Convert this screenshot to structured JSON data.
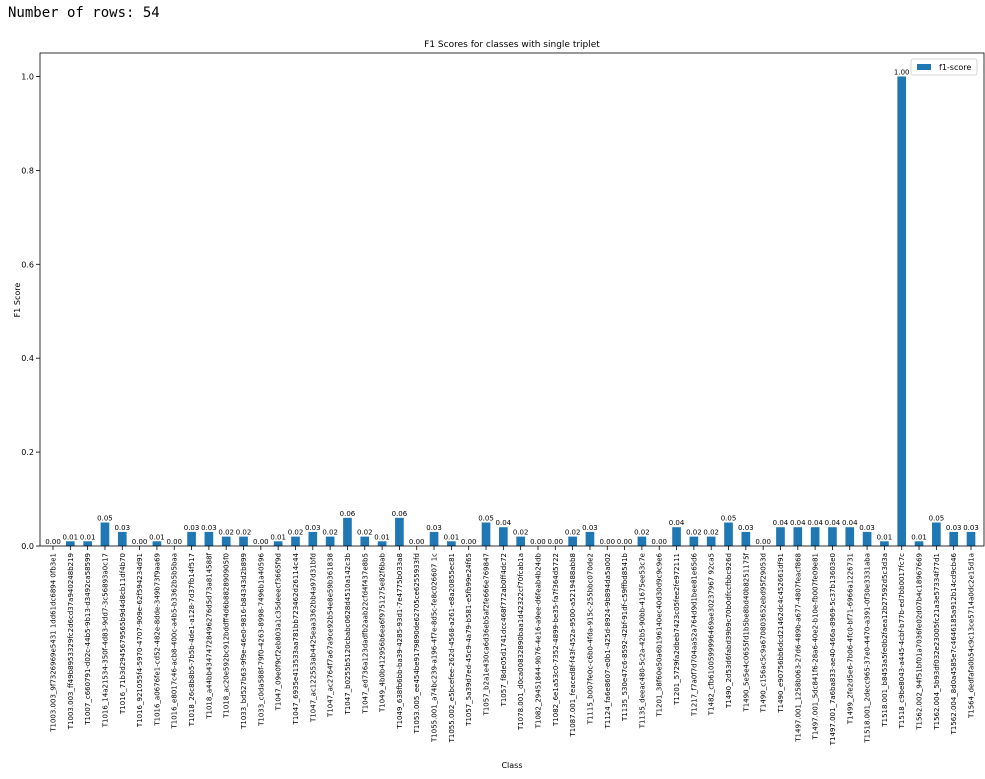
{
  "header": {
    "rows_text": "Number of rows: 54"
  },
  "chart_data": {
    "type": "bar",
    "title": "F1 Scores for classes with single triplet",
    "xlabel": "Class",
    "ylabel": "F1 Score",
    "ylim": [
      0,
      1.05
    ],
    "yticks": [
      "0.0",
      "0.2",
      "0.4",
      "0.6",
      "0.8",
      "1.0"
    ],
    "ytick_values": [
      0,
      0.2,
      0.4,
      0.6,
      0.8,
      1.0
    ],
    "legend": {
      "position": "top-right",
      "entries": [
        "f1-score"
      ]
    },
    "bar_color": "#1f77b4",
    "grid": false,
    "categories": [
      "T1003.003_9f7326969e5431 1dd61dc6894 0fb3e1",
      "T1003.003_ff49b8953329fc2d6cd37a940248b219",
      "T1007_c660791-d02c-44b5-9b13-d3492ca58599",
      "T1016_14a21534-350f-4d83-9dd7-3c56893a0c17",
      "T1016_71b3d2945679565b9d4d8cb11df4b70",
      "T1016_921055f4-5970-4707-909e-62f594234d91",
      "T1016_a0676fe1-cd52-482e-8dde-349b73f9aa69",
      "T1016_e8017c46-acb8-400c-a4b5-b3362b5b5baa",
      "T1018_26c8b8b5-7b5b-4de1-a128-7d37fb14f517",
      "T1018_a44bb43474728496276d5d73a814588f",
      "T1018_ac20e592bc912bddff4d6b882890905f0",
      "T1033_bd527b63-9f9e-46e0-9816-b84343d2b899",
      "T1033_c0da588f-79f0-4263-8998-7496b1a40596",
      "T1047_09e0f9cf2eb803a1c35deeecf3665f9d",
      "T1047_6935e413533aa781bb723462d26114c44",
      "T1047_ac122553ab4425eaa3362bb4a97d31bfd",
      "T1047_ac2764f7a67a9ce92b54e8e59b361838",
      "T1047_b0255b5120cbabc0628d4510a142c3b",
      "T1047_ed736a123dadfb2aab22cfd4f437e8b5",
      "T1049_4b0b412956b6ea6f9751275e82f6bab",
      "T1049_638fb6bb-ba39-4285-93d1-7e4775b033a8",
      "T1053.005_ee454be9179890de62705ce6255933fd",
      "T1055.001_a74bc239-a196-4f7e-8d5c-fe8c026607 1c",
      "T1055.002_e5bcefee-262d-4568-a261-e8a20855ec81",
      "T1057_5a39d7ed-45c9-4a79-b581-e5fb99e24f65",
      "T1057_b2a1e430ca6d36eb5af2fe666e769847",
      "T1057_f8de05d1741dcc468f772ab0ff4dc72",
      "T1078.001_d0ca00832890baa1d42322cf70fcab1a",
      "T1082_29451844-9b76-4e16-a9ee-d6feab4b24db",
      "T1082_6e1a53c0-7352-4899-be35-fa7f364d5722",
      "T1087.001_feaced8f-f43f-452a-9500-a5219488abb8",
      "T1115_b007fe0c-c6b0-4fda-915c-255bbc070de2",
      "T1124_fa6e8607-e0b1-425d-8924-9b894da5a002",
      "T1135_530e47c6-8592-42bf-91df-c59ffbd8541b",
      "T1135_deeac480-5c2a-42b5-90bb-41675ee53c7e",
      "T1201_38f60e50a6b196140ec40d30d9c9c9e6",
      "T1201_5729fa2dbeb7423c05fee2fe972111",
      "T1217_f7a0f7d704aa52a764d9d1bee81e65d6",
      "T1482_cfb6100599996469ae30237967 92ca5",
      "T1490_2d53d6fabd39b9c70b0dfccfbbc926d",
      "T1490_5e5e4c0655fd1b5be8bd40b8251175f",
      "T1490_c156ac5c9a670803652ebd95f29053d",
      "T1490_e90756bb6dcd21462dc4c452661df91",
      "T1497.001_1258b063-27d6-489b-a677-4807feacf868",
      "T1497.001_5dc841f6-28a6-40e2-b10e-fb007fe09e81",
      "T1497.001_7a6ba833-ae40-466a-8969-5c37b13603e0",
      "T1499_2fe2d5e6-7b06-4fc0-bf71-6966a1226731",
      "T1518.001_2decc965-37e0-4470-a391-0f30e3331aba",
      "T1518.001_b8453a5fe0b2faea12b27592d5c3d3a",
      "T1518_c9be8043-a445-4cbf-b77b-ed7bb0017fc7c",
      "T1562.002_94f51bf01a7036fe02d07b4c18967669",
      "T1562.004_5b93df032e23005fc21a3e57334f77d1",
      "T1562.004_8d0a4585e7c4646185a912b14cd9cb46",
      "T1564_dedfafa0b54c9c13ce5714a0dc2e15d1a"
    ],
    "values": [
      0.0,
      0.01,
      0.01,
      0.05,
      0.03,
      0.0,
      0.01,
      0.0,
      0.03,
      0.03,
      0.02,
      0.02,
      0.0,
      0.01,
      0.02,
      0.03,
      0.02,
      0.06,
      0.02,
      0.01,
      0.06,
      0.0,
      0.03,
      0.01,
      0.0,
      0.05,
      0.04,
      0.02,
      0.0,
      0.0,
      0.02,
      0.03,
      0.0,
      0.0,
      0.02,
      0.0,
      0.04,
      0.02,
      0.02,
      0.05,
      0.03,
      0.0,
      0.04,
      0.04,
      0.04,
      0.04,
      0.04,
      0.03,
      0.01,
      1.0,
      0.01,
      0.05,
      0.03,
      0.03
    ],
    "value_labels": [
      "0.00",
      "0.01",
      "0.01",
      "0.05",
      "0.03",
      "0.00",
      "0.01",
      "0.00",
      "0.03",
      "0.03",
      "0.02",
      "0.02",
      "0.00",
      "0.01",
      "0.02",
      "0.03",
      "0.02",
      "0.06",
      "0.02",
      "0.01",
      "0.06",
      "0.00",
      "0.03",
      "0.01",
      "0.00",
      "0.05",
      "0.04",
      "0.02",
      "0.00",
      "0.00",
      "0.02",
      "0.03",
      "0.00",
      "0.00",
      "0.02",
      "0.00",
      "0.04",
      "0.02",
      "0.02",
      "0.05",
      "0.03",
      "0.00",
      "0.04",
      "0.04",
      "0.04",
      "0.04",
      "0.04",
      "0.03",
      "0.01",
      "1.00",
      "0.01",
      "0.05",
      "0.03",
      "0.03"
    ]
  }
}
